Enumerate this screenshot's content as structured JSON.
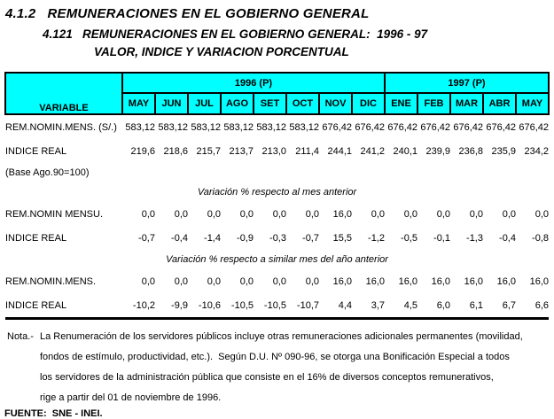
{
  "titles": {
    "line1": "4.1.2   REMUNERACIONES EN EL GOBIERNO GENERAL",
    "line2": "4.121   REMUNERACIONES EN EL GOBIERNO GENERAL:  1996 - 97",
    "line3": "VALOR, INDICE Y VARIACION PORCENTUAL"
  },
  "header": {
    "variable_label": "VARIABLE",
    "year_groups": [
      {
        "label": "1996 (P)",
        "months": [
          "MAY",
          "JUN",
          "JUL",
          "AGO",
          "SET",
          "OCT",
          "NOV",
          "DIC"
        ]
      },
      {
        "label": "1997 (P)",
        "months": [
          "ENE",
          "FEB",
          "MAR",
          "ABR",
          "MAY"
        ]
      }
    ]
  },
  "table": {
    "rows": [
      {
        "kind": "data",
        "label": "REM.NOMIN.MENS. (S/.)",
        "values": [
          "583,12",
          "583,12",
          "583,12",
          "583,12",
          "583,12",
          "583,12",
          "676,42",
          "676,42",
          "676,42",
          "676,42",
          "676,42",
          "676,42",
          "676,42"
        ]
      },
      {
        "kind": "data",
        "label": "INDICE REAL",
        "values": [
          "219,6",
          "218,6",
          "215,7",
          "213,7",
          "213,0",
          "211,4",
          "244,1",
          "241,2",
          "240,1",
          "239,9",
          "236,8",
          "235,9",
          "234,2"
        ]
      },
      {
        "kind": "note",
        "label": "(Base Ago.90=100)"
      },
      {
        "kind": "section",
        "section": "Variación % respecto al mes anterior"
      },
      {
        "kind": "data",
        "label": "REM.NOMIN MENSU.",
        "values": [
          "0,0",
          "0,0",
          "0,0",
          "0,0",
          "0,0",
          "0,0",
          "16,0",
          "0,0",
          "0,0",
          "0,0",
          "0,0",
          "0,0",
          "0,0"
        ]
      },
      {
        "kind": "data",
        "label": "INDICE REAL",
        "values": [
          "-0,7",
          "-0,4",
          "-1,4",
          "-0,9",
          "-0,3",
          "-0,7",
          "15,5",
          "-1,2",
          "-0,5",
          "-0,1",
          "-1,3",
          "-0,4",
          "-0,8"
        ]
      },
      {
        "kind": "section",
        "section": "Variación % respecto a similar mes del año anterior"
      },
      {
        "kind": "data",
        "label": "REM.NOMIN.MENS.",
        "values": [
          "0,0",
          "0,0",
          "0,0",
          "0,0",
          "0,0",
          "0,0",
          "16,0",
          "16,0",
          "16,0",
          "16,0",
          "16,0",
          "16,0",
          "16,0"
        ]
      },
      {
        "kind": "data",
        "label": "INDICE REAL",
        "last": true,
        "values": [
          "-10,2",
          "-9,9",
          "-10,6",
          "-10,5",
          "-10,5",
          "-10,7",
          "4,4",
          "3,7",
          "4,5",
          "6,0",
          "6,1",
          "6,7",
          "6,6"
        ]
      }
    ]
  },
  "footer": {
    "note_label": "Nota.-",
    "note_lines": [
      "La Renumeración de los servidores públicos incluye otras remuneraciones adicionales permanentes (movilidad,",
      "fondos de estímulo, productividad, etc.).  Según D.U. Nº 090-96, se otorga una Bonificación Especial a todos",
      "los servidores de la administración pública que consiste en el 16% de diversos conceptos remunerativos,",
      "rige a partir del 01 de noviembre de 1996."
    ],
    "source": "FUENTE:  SNE - INEI."
  },
  "colors": {
    "header_bg": "#00ffff",
    "border": "#000000",
    "text": "#000000",
    "background": "#ffffff"
  }
}
